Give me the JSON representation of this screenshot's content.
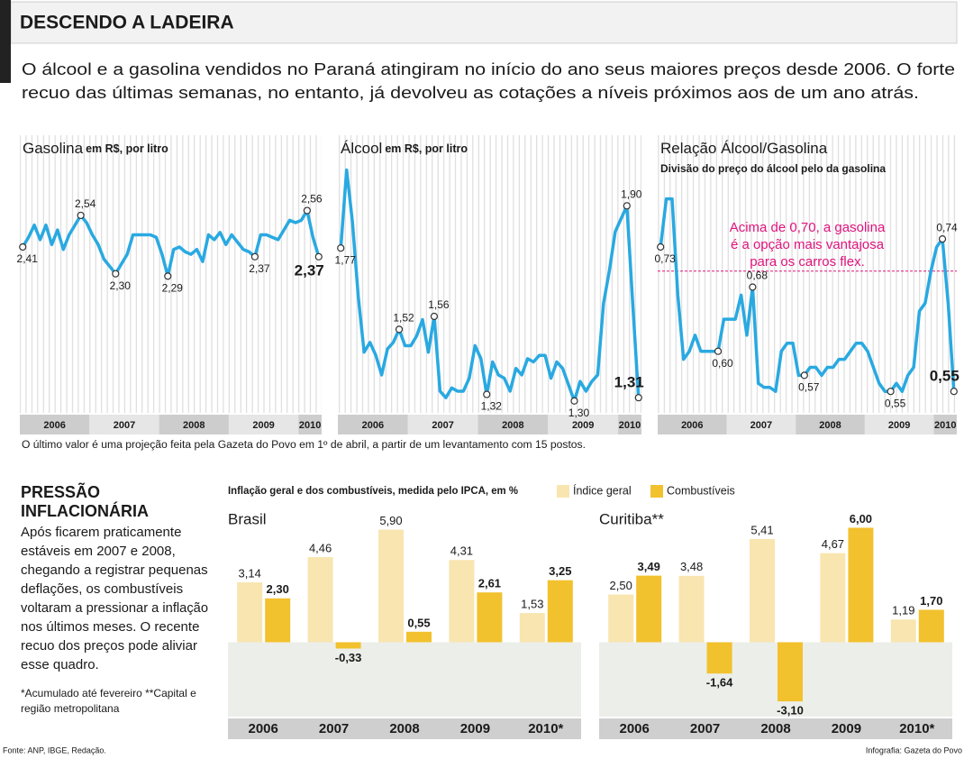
{
  "header": {
    "title": "DESCENDO A LADEIRA",
    "subtitle_lines": [
      "O álcool e a gasolina vendidos no Paraná atingiram no início do ano seus maiores preços desde 2006. O forte",
      "recuo das últimas semanas, no entanto, já devolveu as cotações a níveis próximos aos de um ano atrás."
    ]
  },
  "note": "O último valor é uma projeção feita pela Gazeta do Povo em 1º de abril, a partir de um levantamento com 15 postos.",
  "sidebar": {
    "title_lines": [
      "PRESSÃO",
      "INFLACIONÁRIA"
    ],
    "text_lines": [
      "Após ficarem praticamente",
      "estáveis em 2007 e 2008,",
      "chegando a registrar pequenas",
      "deflações, os combustíveis",
      "voltaram a pressionar a inflação",
      "nos últimos meses. O recente",
      "recuo dos preços pode aliviar",
      "esse quadro."
    ],
    "footnote_lines": [
      "*Acumulado até fevereiro **Capital e",
      "região metropolitana"
    ]
  },
  "footer": {
    "source": "Fonte: ANP, IBGE, Redação.",
    "credit": "Infografia: Gazeta do Povo"
  },
  "chart_data": [
    {
      "type": "line",
      "title": "Gasolina",
      "unit": "em R$, por litro",
      "categories": [
        "2006",
        "2006",
        "2006",
        "2006",
        "2006",
        "2006",
        "2006",
        "2006",
        "2006",
        "2006",
        "2006",
        "2006",
        "2007",
        "2007",
        "2007",
        "2007",
        "2007",
        "2007",
        "2007",
        "2007",
        "2007",
        "2007",
        "2007",
        "2007",
        "2008",
        "2008",
        "2008",
        "2008",
        "2008",
        "2008",
        "2008",
        "2008",
        "2008",
        "2008",
        "2008",
        "2008",
        "2009",
        "2009",
        "2009",
        "2009",
        "2009",
        "2009",
        "2009",
        "2009",
        "2009",
        "2009",
        "2009",
        "2009",
        "2010",
        "2010",
        "2010",
        "2010"
      ],
      "values": [
        2.41,
        2.45,
        2.5,
        2.44,
        2.5,
        2.42,
        2.48,
        2.4,
        2.46,
        2.5,
        2.54,
        2.51,
        2.46,
        2.42,
        2.36,
        2.33,
        2.3,
        2.34,
        2.38,
        2.46,
        2.46,
        2.46,
        2.46,
        2.45,
        2.38,
        2.29,
        2.4,
        2.41,
        2.39,
        2.38,
        2.4,
        2.35,
        2.46,
        2.44,
        2.47,
        2.42,
        2.46,
        2.43,
        2.4,
        2.39,
        2.37,
        2.46,
        2.46,
        2.45,
        2.44,
        2.48,
        2.52,
        2.51,
        2.52,
        2.56,
        2.45,
        2.37
      ],
      "value_labels": [
        "2,41",
        null,
        null,
        null,
        null,
        null,
        null,
        null,
        null,
        null,
        "2,54",
        null,
        null,
        null,
        null,
        null,
        "2,30",
        null,
        null,
        null,
        null,
        null,
        null,
        null,
        null,
        "2,29",
        null,
        null,
        null,
        null,
        null,
        null,
        null,
        null,
        null,
        null,
        null,
        null,
        null,
        null,
        "2,37",
        null,
        null,
        null,
        null,
        null,
        null,
        null,
        null,
        "2,56",
        null,
        "2,37"
      ],
      "color": "#29a9e1",
      "ylim": [
        1.75,
        2.74
      ]
    },
    {
      "type": "line",
      "title": "Álcool",
      "unit": "em R$, por litro",
      "categories": [
        "2006",
        "2006",
        "2006",
        "2006",
        "2006",
        "2006",
        "2006",
        "2006",
        "2006",
        "2006",
        "2006",
        "2006",
        "2007",
        "2007",
        "2007",
        "2007",
        "2007",
        "2007",
        "2007",
        "2007",
        "2007",
        "2007",
        "2007",
        "2007",
        "2008",
        "2008",
        "2008",
        "2008",
        "2008",
        "2008",
        "2008",
        "2008",
        "2008",
        "2008",
        "2008",
        "2008",
        "2009",
        "2009",
        "2009",
        "2009",
        "2009",
        "2009",
        "2009",
        "2009",
        "2009",
        "2009",
        "2009",
        "2009",
        "2010",
        "2010",
        "2010",
        "2010"
      ],
      "values": [
        1.77,
        2.01,
        1.85,
        1.62,
        1.45,
        1.48,
        1.44,
        1.38,
        1.46,
        1.48,
        1.52,
        1.47,
        1.47,
        1.5,
        1.55,
        1.45,
        1.56,
        1.33,
        1.31,
        1.34,
        1.33,
        1.33,
        1.37,
        1.47,
        1.43,
        1.32,
        1.42,
        1.38,
        1.37,
        1.33,
        1.4,
        1.38,
        1.43,
        1.42,
        1.44,
        1.44,
        1.37,
        1.42,
        1.4,
        1.35,
        1.3,
        1.36,
        1.33,
        1.36,
        1.38,
        1.6,
        1.7,
        1.82,
        1.86,
        1.9,
        1.6,
        1.31
      ],
      "value_labels": [
        "1,77",
        null,
        null,
        null,
        null,
        null,
        null,
        null,
        null,
        null,
        "1,52",
        null,
        null,
        null,
        null,
        null,
        "1,56",
        null,
        null,
        null,
        null,
        null,
        null,
        null,
        null,
        "1,32",
        null,
        null,
        null,
        null,
        null,
        null,
        null,
        null,
        null,
        null,
        null,
        null,
        null,
        null,
        "1,30",
        null,
        null,
        null,
        null,
        null,
        null,
        null,
        null,
        "1,90",
        null,
        "1,31"
      ],
      "color": "#29a9e1",
      "ylim": [
        1.28,
        2.02
      ]
    },
    {
      "type": "line",
      "title": "Relação Álcool/Gasolina",
      "subtitle": "Divisão do preço do álcool pelo da gasolina",
      "categories": [
        "2006",
        "2006",
        "2006",
        "2006",
        "2006",
        "2006",
        "2006",
        "2006",
        "2006",
        "2006",
        "2006",
        "2006",
        "2007",
        "2007",
        "2007",
        "2007",
        "2007",
        "2007",
        "2007",
        "2007",
        "2007",
        "2007",
        "2007",
        "2007",
        "2008",
        "2008",
        "2008",
        "2008",
        "2008",
        "2008",
        "2008",
        "2008",
        "2008",
        "2008",
        "2008",
        "2008",
        "2009",
        "2009",
        "2009",
        "2009",
        "2009",
        "2009",
        "2009",
        "2009",
        "2009",
        "2009",
        "2009",
        "2009",
        "2010",
        "2010",
        "2010",
        "2010"
      ],
      "values": [
        0.73,
        0.79,
        0.79,
        0.67,
        0.59,
        0.6,
        0.62,
        0.6,
        0.6,
        0.6,
        0.6,
        0.64,
        0.64,
        0.64,
        0.67,
        0.62,
        0.68,
        0.56,
        0.555,
        0.555,
        0.55,
        0.6,
        0.61,
        0.61,
        0.57,
        0.57,
        0.58,
        0.58,
        0.57,
        0.58,
        0.58,
        0.59,
        0.59,
        0.6,
        0.61,
        0.61,
        0.6,
        0.58,
        0.56,
        0.55,
        0.55,
        0.56,
        0.55,
        0.57,
        0.58,
        0.65,
        0.66,
        0.7,
        0.73,
        0.74,
        0.66,
        0.55
      ],
      "value_labels": [
        "0,73",
        null,
        null,
        null,
        null,
        null,
        null,
        null,
        null,
        null,
        "0,60",
        null,
        null,
        null,
        null,
        null,
        "0,68",
        null,
        null,
        null,
        null,
        null,
        null,
        null,
        null,
        "0,57",
        null,
        null,
        null,
        null,
        null,
        null,
        null,
        null,
        null,
        null,
        null,
        null,
        null,
        null,
        "0,55",
        null,
        null,
        null,
        null,
        null,
        null,
        null,
        null,
        "0,74",
        null,
        "0,55"
      ],
      "color": "#29a9e1",
      "ylim": [
        0.53,
        0.83
      ],
      "threshold": 0.7,
      "threshold_color": "#e0137d",
      "annotation_lines": [
        "Acima de 0,70, a gasolina",
        "é a opção mais vantajosa",
        "para os carros flex."
      ]
    },
    {
      "type": "bar",
      "title": "Brasil",
      "subtitle": "Inflação geral e dos combustíveis, medida pelo IPCA, em %",
      "categories": [
        "2006",
        "2007",
        "2008",
        "2009",
        "2010*"
      ],
      "series": [
        {
          "name": "Índice geral",
          "color": "#f8e5b0",
          "values": [
            3.14,
            4.46,
            5.9,
            4.31,
            1.53
          ],
          "value_labels": [
            "3,14",
            "4,46",
            "5,90",
            "4,31",
            "1,53"
          ]
        },
        {
          "name": "Combustíveis",
          "color": "#f2c12e",
          "values": [
            2.3,
            -0.33,
            0.55,
            2.61,
            3.25
          ],
          "value_labels": [
            "2,30",
            "-0,33",
            "0,55",
            "2,61",
            "3,25"
          ]
        }
      ],
      "ylim": [
        -3.9,
        6.4
      ]
    },
    {
      "type": "bar",
      "title": "Curitiba**",
      "categories": [
        "2006",
        "2007",
        "2008",
        "2009",
        "2010*"
      ],
      "series": [
        {
          "color": "#f8e5b0",
          "values": [
            2.5,
            3.48,
            5.41,
            4.67,
            1.19
          ],
          "value_labels": [
            "2,50",
            "3,48",
            "5,41",
            "4,67",
            "1,19"
          ]
        },
        {
          "color": "#f2c12e",
          "values": [
            3.49,
            -1.64,
            -3.1,
            6.0,
            1.7
          ],
          "value_labels": [
            "3,49",
            "-1,64",
            "-3,10",
            "6,00",
            "1,70"
          ]
        }
      ],
      "ylim": [
        -3.9,
        6.4
      ]
    }
  ]
}
